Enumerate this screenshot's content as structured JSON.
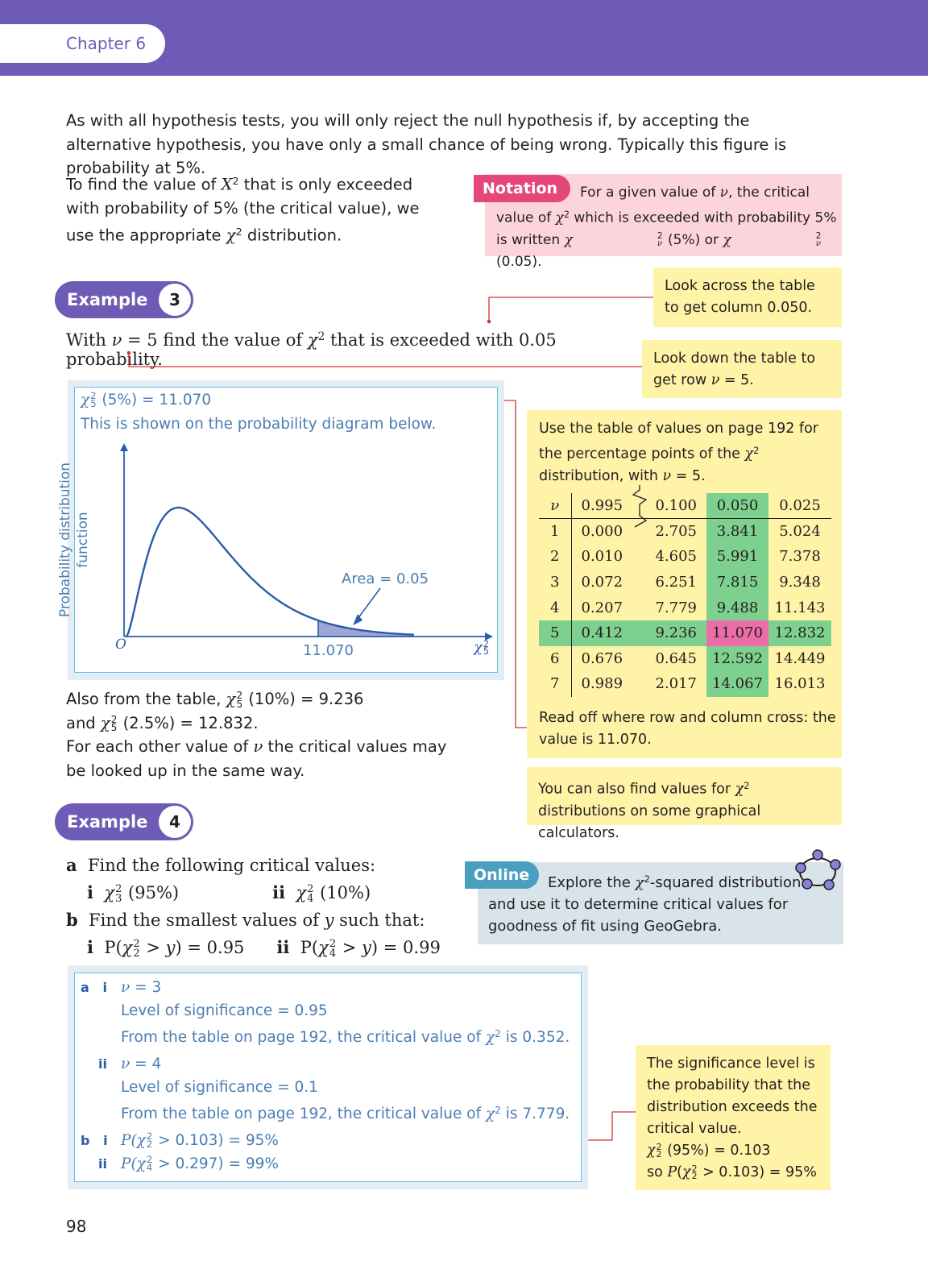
{
  "header": {
    "chapter": "Chapter 6"
  },
  "intro": {
    "p1": "As with all hypothesis tests, you will only reject the null hypothesis if, by accepting the alternative hypothesis, you have only a small chance of being wrong. Typically this figure is probability at 5%.",
    "p2a": "To find the value of ",
    "p2b": " that is only exceeded with probability of 5% (the critical value), we use the appropriate ",
    "p2c": " distribution."
  },
  "notation": {
    "tag": "Notation",
    "t1": "For a given value of ",
    "t2": ", the critical value of ",
    "t3": " which is exceeded with probability 5% is written ",
    "t4": " (5%) or ",
    "t5": " (0.05)."
  },
  "example3": {
    "label": "Example",
    "number": "3",
    "q1": "With ",
    "q2": " = 5 find the value of ",
    "q3": " that is exceeded with 0.05 probability.",
    "hint_across": "Look across the table to get column 0.050.",
    "hint_down_1": "Look down the table to get row ",
    "hint_down_2": " = 5.",
    "sol_line1": " (5%) = 11.070",
    "sol_line2": "This is shown on the probability diagram below.",
    "also_1": "Also from the table, ",
    "also_2": " (10%) = 9.236",
    "also_3": "and ",
    "also_4": " (2.5%) = 12.832.",
    "also_5": "For each other value of ",
    "also_6": " the critical values may be looked up in the same way.",
    "table_note_1": "Use the table of values on page 192 for the percentage points of the ",
    "table_note_2": " distribution, with ",
    "table_note_3": " = 5.",
    "read_off": "Read off where row and column cross: the value is 11.070.",
    "calc_note_1": "You can also find values for ",
    "calc_note_2": " distributions on some graphical calculators."
  },
  "chart_data": {
    "type": "area",
    "ylabel_1": "Probability distribution",
    "ylabel_2": "function",
    "xlabel": "χ",
    "origin_label": "O",
    "critical_value": 11.07,
    "critical_label": "11.070",
    "area_label": "Area = 0.05",
    "degrees_of_freedom": 5,
    "shaded_area": 0.05
  },
  "table": {
    "nu": "ν",
    "columns": [
      "0.995",
      "0.100",
      "0.050",
      "0.025"
    ],
    "rows": [
      [
        "1",
        "0.000",
        "2.705",
        "3.841",
        "5.024"
      ],
      [
        "2",
        "0.010",
        "4.605",
        "5.991",
        "7.378"
      ],
      [
        "3",
        "0.072",
        "6.251",
        "7.815",
        "9.348"
      ],
      [
        "4",
        "0.207",
        "7.779",
        "9.488",
        "11.143"
      ],
      [
        "5",
        "0.412",
        "9.236",
        "11.070",
        "12.832"
      ],
      [
        "6",
        "0.676",
        "0.645",
        "12.592",
        "14.449"
      ],
      [
        "7",
        "0.989",
        "2.017",
        "14.067",
        "16.013"
      ]
    ]
  },
  "example4": {
    "label": "Example",
    "number": "4",
    "a": "a",
    "a_text": "Find the following critical values:",
    "ai": "i",
    "ai_text": " (95%)",
    "aii": "ii",
    "aii_text": " (10%)",
    "b": "b",
    "b_text_1": "Find the smallest values of ",
    "b_text_2": " such that:",
    "bi": "i",
    "bi_text_1": "P(",
    "bi_text_2": " > ",
    "bi_text_3": ") = 0.95",
    "bii": "ii",
    "bii_text_1": "P(",
    "bii_text_2": " > ",
    "bii_text_3": ") = 0.99",
    "sol": {
      "a": "a",
      "i": "i",
      "ai_1": " = 3",
      "ai_2": "Level of significance = 0.95",
      "ai_3a": "From the table on page 192, the critical value of ",
      "ai_3b": " is 0.352.",
      "ii": "ii",
      "aii_1": " = 4",
      "aii_2": "Level of significance = 0.1",
      "aii_3a": "From the table on page 192, the critical value of ",
      "aii_3b": " is 7.779.",
      "b": "b",
      "bi_1": "P(",
      "bi_2": " > 0.103) = 95%",
      "bii_1": "P(",
      "bii_2": " > 0.297) = 99%"
    },
    "sig_note_1": "The significance level is the probability that the distribution exceeds the critical value.",
    "sig_note_2": " (95%) = 0.103",
    "sig_note_3": "so ",
    "sig_note_4": "P",
    "sig_note_5": " > 0.103) = 95%"
  },
  "online": {
    "tag": "Online",
    "text_1": "Explore the ",
    "text_2": "-squared distribution and use it to determine critical values for goodness of fit using GeoGebra."
  },
  "symbols": {
    "chi": "χ",
    "nu": "ν",
    "X": "X",
    "two": "2",
    "three": "3",
    "four": "4",
    "five": "5",
    "y": "y"
  },
  "footer": {
    "page_number": "98"
  },
  "colors": {
    "brand": "#6d5bb5",
    "notation": "#e5477a",
    "hint": "#fff3a8",
    "green": "#7ed08e",
    "pink": "#ec6ea8",
    "solution_text": "#4a7db3"
  }
}
